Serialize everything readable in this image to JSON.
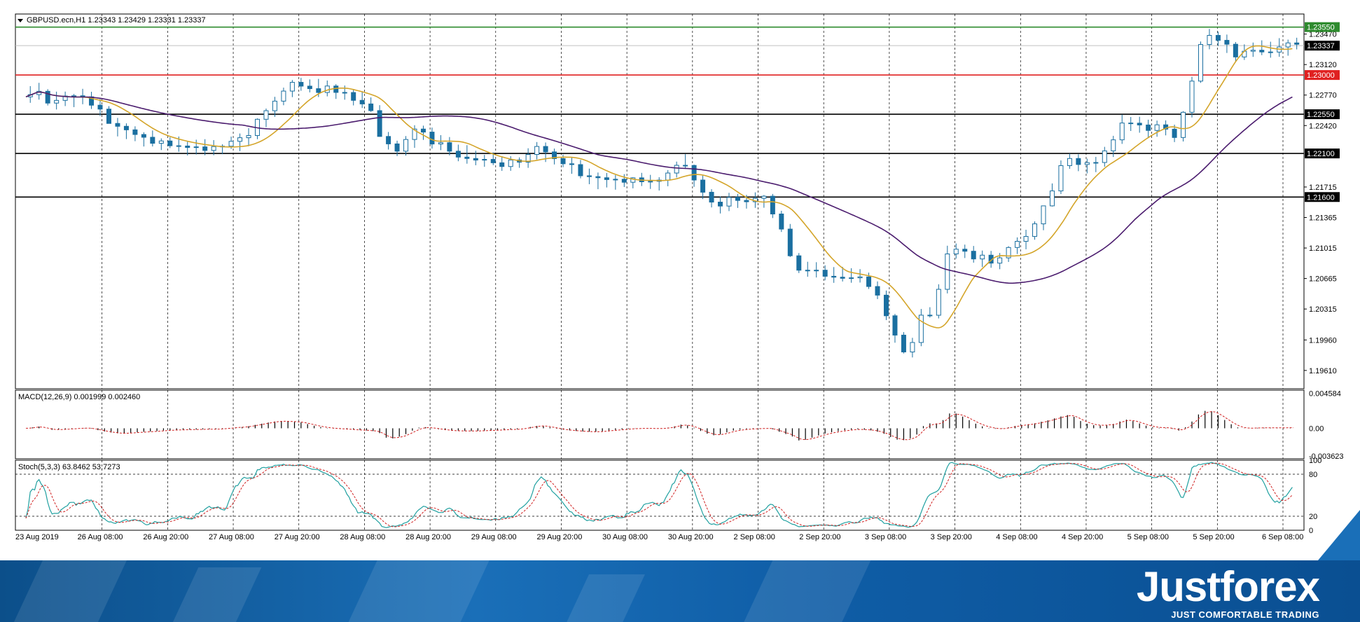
{
  "main_title": "GBPUSD.ecn,H1  1.23343 1.23429 1.23331 1.23337",
  "macd_title": "MACD(12,26,9) 0.001999 0.002460",
  "stoch_title": "Stoch(5,3,3) 63.8462 53.7273",
  "brand": {
    "logo": "Justforex",
    "slogan": "JUST COMFORTABLE TRADING"
  },
  "chart_data": {
    "type": "candlestick",
    "symbol": "GBPUSD.ecn",
    "timeframe": "H1",
    "last_ohlc": {
      "open": 1.23343,
      "high": 1.23429,
      "low": 1.23331,
      "close": 1.23337
    },
    "ylim": [
      1.194,
      1.237
    ],
    "price_ticks": [
      "1.23470",
      "1.23120",
      "1.22770",
      "1.22420",
      "1.21715",
      "1.21365",
      "1.21015",
      "1.20665",
      "1.20315",
      "1.19960",
      "1.19610"
    ],
    "x_ticks": [
      "23 Aug 2019",
      "26 Aug 08:00",
      "26 Aug 20:00",
      "27 Aug 08:00",
      "27 Aug 20:00",
      "28 Aug 08:00",
      "28 Aug 20:00",
      "29 Aug 08:00",
      "29 Aug 20:00",
      "30 Aug 08:00",
      "30 Aug 20:00",
      "2 Sep 08:00",
      "2 Sep 20:00",
      "3 Sep 08:00",
      "3 Sep 20:00",
      "4 Sep 08:00",
      "4 Sep 20:00",
      "5 Sep 08:00",
      "5 Sep 20:00",
      "6 Sep 08:00"
    ],
    "horizontal_levels": [
      {
        "price": 1.2355,
        "label": "1.23550",
        "color": "#2e8b2e"
      },
      {
        "price": 1.23,
        "label": "1.23000",
        "color": "#e02020"
      },
      {
        "price": 1.2255,
        "label": "1.22550",
        "color": "#000000"
      },
      {
        "price": 1.221,
        "label": "1.22100",
        "color": "#000000"
      },
      {
        "price": 1.216,
        "label": "1.21600",
        "color": "#000000"
      }
    ],
    "current_price": {
      "price": 1.23337,
      "label": "1.23337"
    },
    "close_path": [
      [
        0,
        1.2275
      ],
      [
        10,
        1.2285
      ],
      [
        20,
        1.227
      ],
      [
        35,
        1.2272
      ],
      [
        55,
        1.2275
      ],
      [
        70,
        1.2258
      ],
      [
        85,
        1.224
      ],
      [
        100,
        1.2232
      ],
      [
        115,
        1.2225
      ],
      [
        130,
        1.2222
      ],
      [
        150,
        1.2218
      ],
      [
        175,
        1.2215
      ],
      [
        200,
        1.2225
      ],
      [
        215,
        1.2245
      ],
      [
        230,
        1.227
      ],
      [
        250,
        1.229
      ],
      [
        270,
        1.2285
      ],
      [
        290,
        1.228
      ],
      [
        310,
        1.227
      ],
      [
        320,
        1.2262
      ],
      [
        330,
        1.222
      ],
      [
        345,
        1.2215
      ],
      [
        360,
        1.2235
      ],
      [
        375,
        1.2225
      ],
      [
        390,
        1.2215
      ],
      [
        410,
        1.2205
      ],
      [
        430,
        1.22
      ],
      [
        450,
        1.2198
      ],
      [
        470,
        1.2215
      ],
      [
        485,
        1.2205
      ],
      [
        500,
        1.2195
      ],
      [
        520,
        1.218
      ],
      [
        540,
        1.2178
      ],
      [
        560,
        1.218
      ],
      [
        580,
        1.2178
      ],
      [
        590,
        1.2185
      ],
      [
        600,
        1.22
      ],
      [
        610,
        1.219
      ],
      [
        620,
        1.2168
      ],
      [
        630,
        1.215
      ],
      [
        645,
        1.2155
      ],
      [
        660,
        1.2155
      ],
      [
        680,
        1.2156
      ],
      [
        700,
        1.2115
      ],
      [
        705,
        1.2085
      ],
      [
        720,
        1.2075
      ],
      [
        740,
        1.207
      ],
      [
        760,
        1.207
      ],
      [
        775,
        1.206
      ],
      [
        785,
        1.204
      ],
      [
        795,
        1.2005
      ],
      [
        805,
        1.1985
      ],
      [
        815,
        1.199
      ],
      [
        820,
        1.2025
      ],
      [
        835,
        1.203
      ],
      [
        845,
        1.2095
      ],
      [
        860,
        1.21
      ],
      [
        875,
        1.209
      ],
      [
        890,
        1.2085
      ],
      [
        905,
        1.21
      ],
      [
        920,
        1.2115
      ],
      [
        935,
        1.2145
      ],
      [
        945,
        1.2175
      ],
      [
        955,
        1.2205
      ],
      [
        965,
        1.2195
      ],
      [
        980,
        1.2198
      ],
      [
        995,
        1.2215
      ],
      [
        1005,
        1.2245
      ],
      [
        1015,
        1.2245
      ],
      [
        1030,
        1.2238
      ],
      [
        1045,
        1.224
      ],
      [
        1055,
        1.2225
      ],
      [
        1065,
        1.226
      ],
      [
        1075,
        1.232
      ],
      [
        1085,
        1.2345
      ],
      [
        1095,
        1.234
      ],
      [
        1110,
        1.2325
      ],
      [
        1125,
        1.233
      ],
      [
        1145,
        1.2331
      ],
      [
        1161,
        1.2334
      ]
    ],
    "ma_fast": {
      "color": "#d4a52a"
    },
    "ma_slow": {
      "color": "#4b1c6e"
    },
    "macd": {
      "ylim": [
        -0.004,
        0.005
      ],
      "ticks": [
        "0.004584",
        "0.00",
        "-0.003623"
      ]
    },
    "stoch": {
      "ylim": [
        0,
        100
      ],
      "ticks": [
        "100",
        "80",
        "20",
        "0"
      ],
      "levels": [
        80,
        20
      ]
    }
  }
}
